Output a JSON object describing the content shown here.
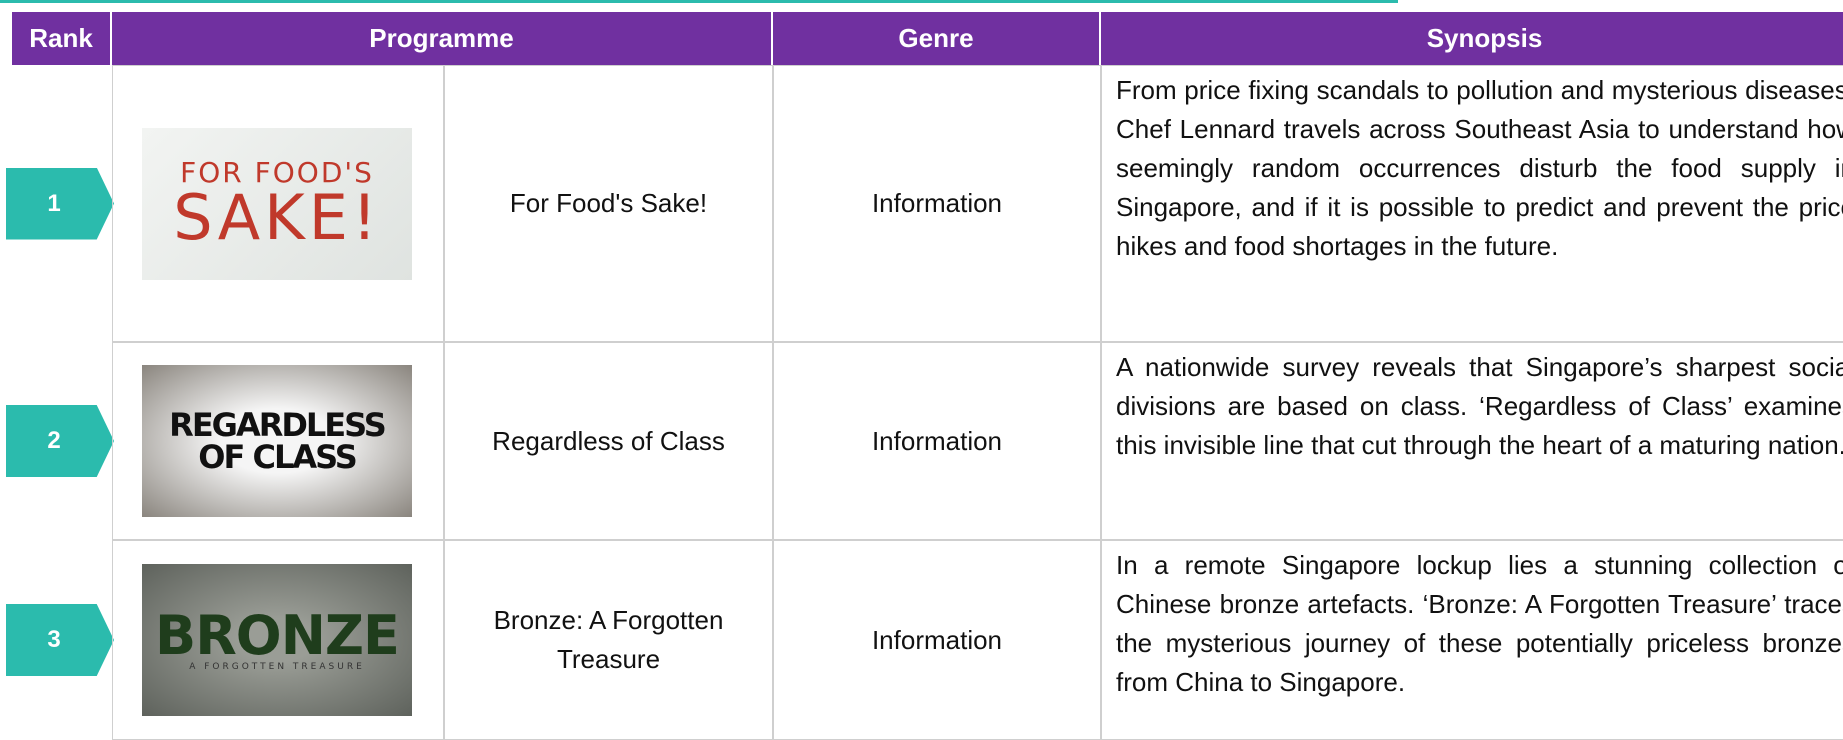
{
  "table": {
    "headers": [
      "Rank",
      "Programme",
      "Genre",
      "Synopsis"
    ],
    "rows": [
      {
        "rank": "1",
        "thumbnail": [
          "FOR FOOD'S",
          "SAKE!"
        ],
        "programme": "For Food's Sake!",
        "genre": "Information",
        "synopsis": "From price fixing scandals to pollution and mysterious diseases, Chef Lennard travels across Southeast Asia to understand how seemingly random occurrences disturb the food supply in Singapore, and if it is possible to predict and prevent the price hikes and food shortages in the future."
      },
      {
        "rank": "2",
        "thumbnail": [
          "REGARDLESS",
          "OF CLASS"
        ],
        "programme": "Regardless of Class",
        "genre": "Information",
        "synopsis": "A nationwide survey reveals that Singapore’s sharpest social divisions are based on class. ‘Regardless of Class’ examines this invisible line that cut through the heart of a maturing nation."
      },
      {
        "rank": "3",
        "thumbnail": [
          "BRONZE",
          "A FORGOTTEN TREASURE"
        ],
        "programme": "Bronze: A Forgotten Treasure",
        "genre": "Information",
        "synopsis": "In a remote Singapore lockup lies a stunning collection of Chinese bronze artefacts. ‘Bronze: A Forgotten Treasure’ traces the mysterious journey of these potentially priceless bronzes from China to Singapore."
      }
    ]
  }
}
